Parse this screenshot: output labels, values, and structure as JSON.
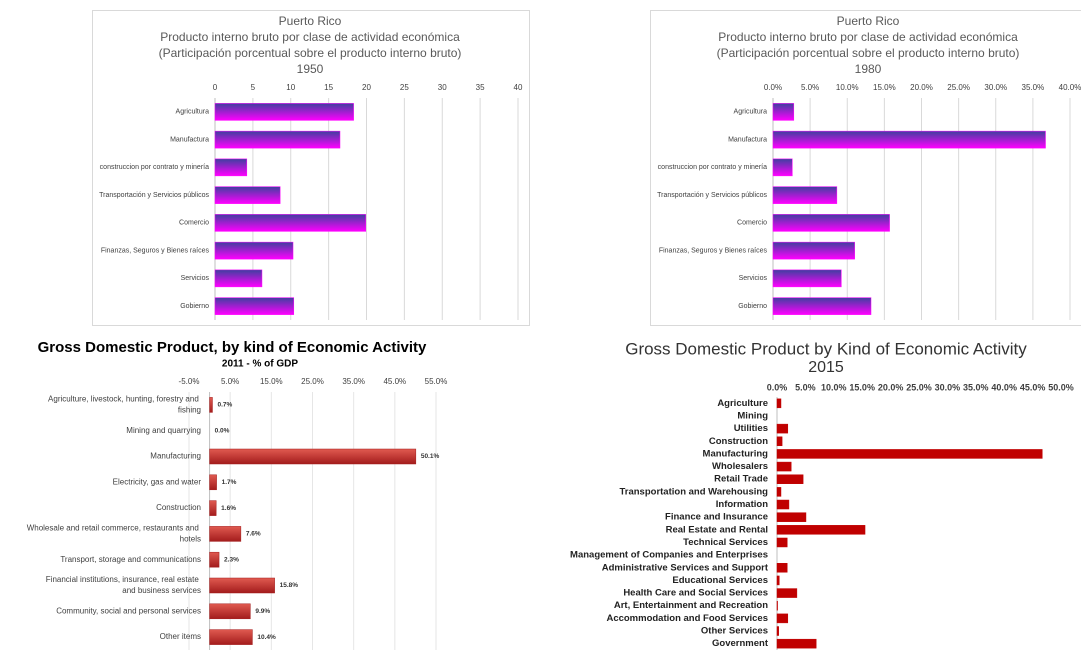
{
  "chart_data": [
    {
      "type": "bar",
      "orientation": "horizontal",
      "title": [
        "Puerto Rico",
        "Producto interno bruto por clase de actividad económica",
        "(Participación porcentual sobre el producto interno bruto)",
        "1950"
      ],
      "categories": [
        "Agricultura",
        "Manufactura",
        "construccion por contrato y minería",
        "Transportación y Servicios públicos",
        "Comercio",
        "Finanzas, Seguros y Bienes raíces",
        "Servicios",
        "Gobierno"
      ],
      "values": [
        18.3,
        16.5,
        4.2,
        8.6,
        19.9,
        10.3,
        6.2,
        10.4
      ],
      "color": [
        "#3f3f9f",
        "#ff00ff"
      ],
      "xlim": [
        0,
        40
      ],
      "xticks": [
        0,
        5,
        10,
        15,
        20,
        25,
        30,
        35,
        40
      ],
      "grid": true
    },
    {
      "type": "bar",
      "orientation": "horizontal",
      "title": [
        "Puerto Rico",
        "Producto interno bruto por clase de actividad económica",
        "(Participación porcentual sobre el producto interno bruto)",
        "1980"
      ],
      "categories": [
        "Agricultura",
        "Manufactura",
        "construccion por contrato y minería",
        "Transportación y Servicios públicos",
        "Comercio",
        "Finanzas, Seguros y Bienes raíces",
        "Servicios",
        "Gobierno"
      ],
      "values": [
        2.8,
        36.7,
        2.6,
        8.6,
        15.7,
        11.0,
        9.2,
        13.2
      ],
      "color": [
        "#3f3f9f",
        "#ff00ff"
      ],
      "xlim": [
        0,
        40
      ],
      "xticks": [
        {
          "value": 0,
          "label": "0.0%"
        },
        {
          "value": 5,
          "label": "5.0%"
        },
        {
          "value": 10,
          "label": "10.0%"
        },
        {
          "value": 15,
          "label": "15.0%"
        },
        {
          "value": 20,
          "label": "20.0%"
        },
        {
          "value": 25,
          "label": "25.0%"
        },
        {
          "value": 30,
          "label": "30.0%"
        },
        {
          "value": 35,
          "label": "35.0%"
        },
        {
          "value": 40,
          "label": "40.0%"
        }
      ],
      "grid": true
    },
    {
      "type": "bar",
      "orientation": "horizontal",
      "title": [
        "Gross Domestic Product, by kind of Economic Activity"
      ],
      "subtitle": "2011 - % of GDP",
      "categories": [
        "Agriculture, livestock, hunting, forestry and fishing",
        "Mining and quarrying",
        "Manufacturing",
        "Electricity, gas and water",
        "Construction",
        "Wholesale and retail commerce, restaurants and hotels",
        "Transport, storage and communications",
        "Financial institutions, insurance, real estate and business services",
        "Community, social and personal services",
        "Other items"
      ],
      "values": [
        0.7,
        0.0,
        50.1,
        1.7,
        1.6,
        7.6,
        2.3,
        15.8,
        9.9,
        10.4
      ],
      "value_labels": [
        "0.7%",
        "0.0%",
        "50.1%",
        "1.7%",
        "1.6%",
        "7.6%",
        "2.3%",
        "15.8%",
        "9.9%",
        "10.4%"
      ],
      "color": [
        "#e05a50",
        "#a31c1c"
      ],
      "xlim": [
        -5,
        55
      ],
      "xticks": [
        {
          "value": -5,
          "label": "-5.0%"
        },
        {
          "value": 5,
          "label": "5.0%"
        },
        {
          "value": 15,
          "label": "15.0%"
        },
        {
          "value": 25,
          "label": "25.0%"
        },
        {
          "value": 35,
          "label": "35.0%"
        },
        {
          "value": 45,
          "label": "45.0%"
        },
        {
          "value": 55,
          "label": "55.0%"
        }
      ],
      "grid": true
    },
    {
      "type": "bar",
      "orientation": "horizontal",
      "title": [
        "Gross Domestic Product by Kind of Economic Activity",
        "2015"
      ],
      "categories": [
        "Agriculture",
        "Mining",
        "Utilities",
        "Construction",
        "Manufacturing",
        "Wholesalers",
        "Retail Trade",
        "Transportation and Warehousing",
        "Information",
        "Finance and Insurance",
        "Real Estate and Rental",
        "Technical Services",
        "Management of Companies and Enterprises",
        "Administrative Services and Support",
        "Educational Services",
        "Health Care and Social Services",
        "Art, Entertainment and Recreation",
        "Accommodation and Food Services",
        "Other Services",
        "Government"
      ],
      "values": [
        0.7,
        0,
        1.9,
        0.9,
        46.7,
        2.5,
        4.6,
        0.7,
        2.1,
        5.1,
        15.5,
        1.8,
        0,
        1.8,
        0.4,
        3.5,
        0.1,
        1.9,
        0.3,
        6.9
      ],
      "color": [
        "#c00000",
        "#c00000"
      ],
      "xlim": [
        0,
        50
      ],
      "xticks": [
        {
          "value": 0,
          "label": "0.0%"
        },
        {
          "value": 5,
          "label": "5.0%"
        },
        {
          "value": 10,
          "label": "10.0%"
        },
        {
          "value": 15,
          "label": "15.0%"
        },
        {
          "value": 20,
          "label": "20.0%"
        },
        {
          "value": 25,
          "label": "25.0%"
        },
        {
          "value": 30,
          "label": "30.0%"
        },
        {
          "value": 35,
          "label": "35.0%"
        },
        {
          "value": 40,
          "label": "40.0%"
        },
        {
          "value": 45,
          "label": "45.0%"
        },
        {
          "value": 50,
          "label": "50.0%"
        }
      ],
      "grid": false
    }
  ]
}
